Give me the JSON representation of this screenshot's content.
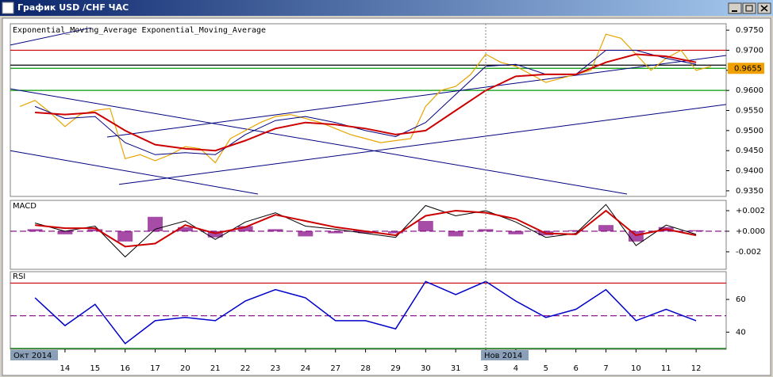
{
  "window": {
    "title": "График USD /CHF ЧАС"
  },
  "chart_data": [
    {
      "type": "line",
      "xlim": [
        -0.82,
        23
      ],
      "ylim": [
        0.9336,
        0.9766
      ],
      "yticks": [
        {
          "value": 0.935,
          "label": "0.9350"
        },
        {
          "value": 0.94,
          "label": "0.9400"
        },
        {
          "value": 0.945,
          "label": "0.9450"
        },
        {
          "value": 0.95,
          "label": "0.9500"
        },
        {
          "value": 0.955,
          "label": "0.9550"
        },
        {
          "value": 0.96,
          "label": "0.9600"
        },
        {
          "value": 0.965,
          "label": "0.9650"
        },
        {
          "value": 0.97,
          "label": "0.9700"
        },
        {
          "value": 0.975,
          "label": "0.9750"
        }
      ],
      "last_price": 0.9655,
      "last_price_color": "#f0a000",
      "hlines": [
        {
          "value": 0.97,
          "color": "#cc0000"
        },
        {
          "value": 0.9663,
          "color": "#000000"
        },
        {
          "value": 0.9655,
          "color": "#009900"
        },
        {
          "value": 0.96,
          "color": "#009900"
        }
      ],
      "trendlines": [
        {
          "x": [
            2.4,
            23
          ],
          "y": [
            0.9484,
            0.9687
          ],
          "color": "#000080"
        },
        {
          "x": [
            2.8,
            23
          ],
          "y": [
            0.9366,
            0.9565
          ],
          "color": "#000080"
        },
        {
          "x": [
            -0.82,
            19.7
          ],
          "y": [
            0.9604,
            0.9342
          ],
          "color": "#000080"
        },
        {
          "x": [
            -0.82,
            7.42
          ],
          "y": [
            0.945,
            0.9342
          ],
          "color": "#000080"
        },
        {
          "x": [
            -0.82,
            1.87
          ],
          "y": [
            0.9713,
            0.9756
          ],
          "color": "#000080"
        }
      ],
      "series": [
        {
          "color": "#e8a400",
          "width": 1.2,
          "x": [
            -0.5,
            0,
            0.5,
            1,
            1.5,
            2,
            2.5,
            3,
            3.5,
            4,
            4.5,
            5,
            5.5,
            6,
            6.5,
            7,
            7.5,
            8,
            8.5,
            9,
            9.5,
            10,
            10.5,
            11,
            11.5,
            12,
            12.5,
            13,
            13.5,
            14,
            14.5,
            15,
            15.5,
            16,
            16.5,
            17,
            17.5,
            18,
            18.5,
            19,
            19.5,
            20,
            20.5,
            21,
            21.5,
            22,
            22.5
          ],
          "values": [
            0.956,
            0.9575,
            0.9545,
            0.951,
            0.954,
            0.955,
            0.9555,
            0.943,
            0.944,
            0.9425,
            0.944,
            0.946,
            0.9455,
            0.942,
            0.948,
            0.95,
            0.952,
            0.9535,
            0.954,
            0.953,
            0.952,
            0.9505,
            0.949,
            0.948,
            0.947,
            0.9475,
            0.948,
            0.956,
            0.96,
            0.961,
            0.964,
            0.969,
            0.967,
            0.966,
            0.964,
            0.962,
            0.963,
            0.964,
            0.965,
            0.974,
            0.973,
            0.969,
            0.965,
            0.968,
            0.97,
            0.965,
            0.966
          ]
        },
        {
          "name": "Exponential_Moving_Average",
          "color": "#000080",
          "width": 1,
          "x": [
            0,
            1,
            2,
            3,
            4,
            5,
            6,
            7,
            8,
            9,
            10,
            11,
            12,
            13,
            14,
            15,
            16,
            17,
            18,
            19,
            20,
            21,
            22
          ],
          "values": [
            0.956,
            0.953,
            0.9535,
            0.947,
            0.944,
            0.9445,
            0.944,
            0.949,
            0.9525,
            0.9535,
            0.952,
            0.95,
            0.9485,
            0.952,
            0.959,
            0.966,
            0.9665,
            0.964,
            0.964,
            0.97,
            0.97,
            0.968,
            0.9665
          ]
        },
        {
          "name": "Exponential_Moving_Average",
          "color": "#cc0000",
          "width": 2,
          "x": [
            0,
            1,
            2,
            3,
            4,
            5,
            6,
            7,
            8,
            9,
            10,
            11,
            12,
            13,
            14,
            15,
            16,
            17,
            18,
            19,
            20,
            21,
            22
          ],
          "values": [
            0.9545,
            0.954,
            0.9545,
            0.95,
            0.9465,
            0.9455,
            0.945,
            0.9475,
            0.9505,
            0.952,
            0.9515,
            0.9505,
            0.949,
            0.95,
            0.955,
            0.96,
            0.9635,
            0.964,
            0.964,
            0.967,
            0.969,
            0.9685,
            0.967
          ]
        }
      ]
    },
    {
      "type": "line",
      "title": "MACD",
      "xlim": [
        -0.82,
        23
      ],
      "ylim": [
        -0.0037,
        0.003
      ],
      "yticks": [
        {
          "value": 0.002,
          "label": "+0.002"
        },
        {
          "value": 0,
          "label": "+0.000"
        },
        {
          "value": -0.002,
          "label": "-0.002"
        }
      ],
      "hlines": [
        {
          "value": 0,
          "color": "#800080",
          "dash": true
        }
      ],
      "series": [
        {
          "kind": "bar",
          "color": "#800080",
          "x": [
            0,
            1,
            2,
            3,
            4,
            5,
            6,
            7,
            8,
            9,
            10,
            11,
            12,
            13,
            14,
            15,
            16,
            17,
            18,
            19,
            20,
            21,
            22
          ],
          "values": [
            0.0002,
            -0.0003,
            0.0002,
            -0.001,
            0.0014,
            0.0004,
            -0.0006,
            0.0005,
            0.0002,
            -0.0005,
            -0.0002,
            -0.0002,
            -0.0002,
            0.001,
            -0.0005,
            0.0002,
            -0.0003,
            -0.0004,
            0.0001,
            0.0006,
            -0.001,
            0.0004,
            0.0001
          ]
        },
        {
          "color": "#000000",
          "width": 1,
          "x": [
            0,
            1,
            2,
            3,
            4,
            5,
            6,
            7,
            8,
            9,
            10,
            11,
            12,
            13,
            14,
            15,
            16,
            17,
            18,
            19,
            20,
            21,
            22
          ],
          "values": [
            0.0008,
            0,
            0.0005,
            -0.0025,
            0.0002,
            0.001,
            -0.0008,
            0.0009,
            0.0018,
            0.0005,
            0.0002,
            -0.0002,
            -0.0006,
            0.0025,
            0.0015,
            0.002,
            0.0009,
            -0.0006,
            -0.0002,
            0.0026,
            -0.0014,
            0.0006,
            -0.0003
          ]
        },
        {
          "color": "#cc0000",
          "width": 2,
          "x": [
            0,
            1,
            2,
            3,
            4,
            5,
            6,
            7,
            8,
            9,
            10,
            11,
            12,
            13,
            14,
            15,
            16,
            17,
            18,
            19,
            20,
            21,
            22
          ],
          "values": [
            0.0006,
            0.0003,
            0.0003,
            -0.0015,
            -0.0012,
            0.0006,
            -0.0002,
            0.0004,
            0.0016,
            0.001,
            0.0004,
            0,
            -0.0004,
            0.0015,
            0.002,
            0.0018,
            0.0012,
            -0.0002,
            -0.0003,
            0.002,
            -0.0004,
            0.0002,
            -0.0004
          ]
        }
      ]
    },
    {
      "type": "line",
      "title": "RSI",
      "xlim": [
        -0.82,
        23
      ],
      "ylim": [
        29.5,
        77
      ],
      "yticks": [
        40,
        60
      ],
      "hlines": [
        {
          "value": 70,
          "color": "#cc0000"
        },
        {
          "value": 50,
          "color": "#800080",
          "dash": true
        },
        {
          "value": 30,
          "color": "#007700"
        }
      ],
      "series": [
        {
          "color": "#0000cc",
          "width": 1.5,
          "x": [
            0,
            1,
            2,
            3,
            4,
            5,
            6,
            7,
            8,
            9,
            10,
            11,
            12,
            13,
            14,
            15,
            16,
            17,
            18,
            19,
            20,
            21,
            22
          ],
          "values": [
            61,
            44,
            57,
            33,
            47,
            49,
            47,
            59,
            66,
            61,
            47,
            47,
            42,
            71,
            63,
            71,
            59,
            49,
            54,
            66,
            47,
            54,
            47
          ]
        }
      ],
      "xticks": [
        {
          "value": 1,
          "label": "14"
        },
        {
          "value": 2,
          "label": "15"
        },
        {
          "value": 3,
          "label": "16"
        },
        {
          "value": 4,
          "label": "17"
        },
        {
          "value": 5,
          "label": "20"
        },
        {
          "value": 6,
          "label": "21"
        },
        {
          "value": 7,
          "label": "22"
        },
        {
          "value": 8,
          "label": "23"
        },
        {
          "value": 9,
          "label": "24"
        },
        {
          "value": 10,
          "label": "27"
        },
        {
          "value": 11,
          "label": "28"
        },
        {
          "value": 12,
          "label": "29"
        },
        {
          "value": 13,
          "label": "30"
        },
        {
          "value": 14,
          "label": "31"
        },
        {
          "value": 15,
          "label": "3"
        },
        {
          "value": 16,
          "label": "4"
        },
        {
          "value": 17,
          "label": "5"
        },
        {
          "value": 18,
          "label": "6"
        },
        {
          "value": 19,
          "label": "7"
        },
        {
          "value": 20,
          "label": "10"
        },
        {
          "value": 21,
          "label": "11"
        },
        {
          "value": 22,
          "label": "12"
        }
      ],
      "period_labels": [
        {
          "value": 0,
          "label": "Окт 2014"
        },
        {
          "value": 15,
          "label": "Нов 2014"
        }
      ]
    }
  ]
}
